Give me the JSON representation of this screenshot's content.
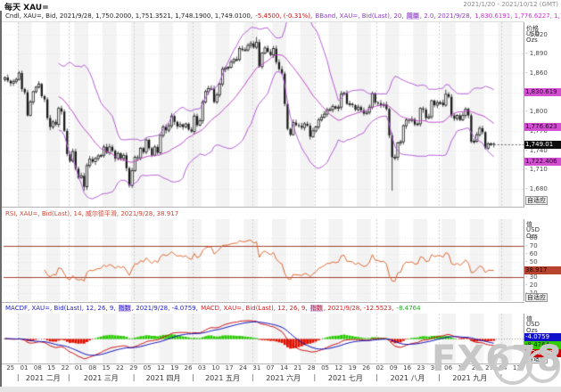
{
  "window": {
    "title": "每天 XAU=",
    "range": "2021/1/20 - 2021/10/12 (GMT)"
  },
  "watermark": "FX678",
  "legends": {
    "main": [
      {
        "text": "Cndl, XAU=, Bid, 2021/9/28, 1,750.2000, 1,751.3521, 1,748.1900, 1,749.0100, ",
        "color": "#222222"
      },
      {
        "text": "-5.4500, (-0.31%), ",
        "color": "#cc1111"
      },
      {
        "text": "BBand, XAU=, Bid(Last), 20, ",
        "color": "#8a3fc0"
      },
      {
        "text": "简单",
        "color": "#8a3fc0",
        "highlight": true
      },
      {
        "text": ", 2.0, 2021/9/28, ",
        "color": "#8a3fc0"
      },
      {
        "text": "1,830.6191, 1,776.6227, 1,722.4063",
        "color": "#cc33cc"
      }
    ],
    "rsi": [
      {
        "text": "RSI, XAU=, Bid(Last), 14, 威尔德平滑, 2021/9/28, 38.917",
        "color": "#cc4433"
      }
    ],
    "macd": [
      {
        "text": "MACDF, XAU=, Bid(Last), 12, 26, 9, ",
        "color": "#2222cc"
      },
      {
        "text": "指数",
        "color": "#2222cc",
        "highlight": true
      },
      {
        "text": ", 2021/9/28, -4.0759, ",
        "color": "#2222cc"
      },
      {
        "text": "MACD, XAU=, Bid(Last), 12, 26, 9, ",
        "color": "#cc2222"
      },
      {
        "text": "指数",
        "color": "#cc2222",
        "highlight": true
      },
      {
        "text": ", 2021/9/28, -12.5523, ",
        "color": "#cc2222"
      },
      {
        "text": "-8.4764",
        "color": "#22aa22"
      }
    ]
  },
  "axes": {
    "price": {
      "header": [
        "价格",
        "USD",
        "Ozs"
      ],
      "ticks": [
        "1,920",
        "1,890",
        "1,860",
        "1,830",
        "1,800",
        "1,770",
        "1,740",
        "1,710",
        "1,680"
      ],
      "tick_values": [
        1920,
        1890,
        1860,
        1830,
        1800,
        1770,
        1740,
        1710,
        1680
      ],
      "footer": "自适应",
      "badges": [
        {
          "label": "1,830.619",
          "value": 1830.62,
          "bg": "#d24fd2",
          "fg": "#2a002a"
        },
        {
          "label": "1,776.623",
          "value": 1776.62,
          "bg": "#d24fd2",
          "fg": "#2a002a"
        },
        {
          "label": "1,749.01",
          "value": 1749.01,
          "bg": "#0d0d0d",
          "fg": "#ffffff"
        },
        {
          "label": "1,722.406",
          "value": 1722.41,
          "bg": "#d24fd2",
          "fg": "#2a002a"
        }
      ]
    },
    "rsi": {
      "header": [
        "值",
        "USD",
        "Ozs"
      ],
      "ticks": [
        80,
        70,
        60,
        50,
        40,
        30,
        20,
        10
      ],
      "levels": [
        70,
        30
      ],
      "footer": "自适应",
      "badges": [
        {
          "label": "38.917",
          "value": 38.917,
          "bg": "#b8432f",
          "fg": "#1a0000"
        }
      ]
    },
    "macd": {
      "header": [
        "值",
        "USD",
        "Ozs"
      ],
      "footer": "自适应",
      "badges": [
        {
          "label": "-4.0759",
          "bg": "#1111cc",
          "fg": "#ffffff"
        },
        {
          "label": "-8.4764",
          "bg": "#33cc00",
          "fg": "#0b2600"
        },
        {
          "label": "-12.5523",
          "bg": "#cc0000",
          "fg": "#ffffff"
        }
      ]
    }
  },
  "time_axis": {
    "day_ticks": [
      "25",
      "01",
      "08",
      "15",
      "22",
      "01",
      "08",
      "15",
      "22",
      "29",
      "05",
      "12",
      "19",
      "26",
      "03",
      "10",
      "17",
      "24",
      "31",
      "07",
      "14",
      "21",
      "28",
      "05",
      "12",
      "19",
      "26",
      "02",
      "09",
      "16",
      "23",
      "30",
      "06",
      "13",
      "20",
      "27",
      "04",
      "11"
    ],
    "months": [
      "2021 二月",
      "2021 三月",
      "2021 四月",
      "2021 五月",
      "2021 六月",
      "2021 七月",
      "2021 八月",
      "2021 九月"
    ]
  },
  "chart_data": {
    "type": "candlestick",
    "symbol": "XAU=",
    "interval": "每天",
    "visible_range": "2021/1/20 - 2021/10/12 (GMT)",
    "last": {
      "date": "2021/9/28",
      "open": 1750.2,
      "high": 1751.3521,
      "low": 1748.19,
      "close": 1749.01,
      "change": -5.45,
      "change_pct": "-0.31%"
    },
    "studies": [
      {
        "name": "BBand",
        "params": "20, 简单, 2.0",
        "upper": 1830.6191,
        "middle": 1776.6227,
        "lower": 1722.4063
      },
      {
        "name": "RSI",
        "params": "14, 威尔德平滑",
        "value": 38.917,
        "levels": [
          70,
          30
        ]
      },
      {
        "name": "MACD",
        "params": "12, 26, 9, 指数",
        "macdf": -4.0759,
        "macd": -12.5523,
        "hist": -8.4764
      }
    ],
    "ylim": [
      1652,
      1939
    ],
    "rsi_ylim": [
      0,
      100
    ],
    "macd_ylim": [
      -45,
      45
    ],
    "slots": 184,
    "month_slots": [
      5,
      23,
      46,
      67,
      88,
      110,
      132,
      154,
      176
    ],
    "closes": [
      1853,
      1848,
      1844,
      1847,
      1850,
      1860,
      1835,
      1830,
      1794,
      1815,
      1831,
      1838,
      1843,
      1824,
      1819,
      1790,
      1776,
      1784,
      1780,
      1805,
      1800,
      1770,
      1734,
      1723,
      1738,
      1711,
      1697,
      1700,
      1683,
      1716,
      1726,
      1722,
      1727,
      1731,
      1732,
      1745,
      1736,
      1745,
      1739,
      1727,
      1735,
      1727,
      1732,
      1712,
      1685,
      1708,
      1729,
      1728,
      1743,
      1737,
      1756,
      1743,
      1732,
      1745,
      1736,
      1763,
      1776,
      1771,
      1778,
      1793,
      1784,
      1777,
      1780,
      1776,
      1781,
      1772,
      1769,
      1793,
      1779,
      1786,
      1815,
      1831,
      1836,
      1836,
      1815,
      1826,
      1843,
      1866,
      1868,
      1869,
      1877,
      1881,
      1881,
      1898,
      1896,
      1896,
      1903,
      1906,
      1900,
      1908,
      1870,
      1891,
      1899,
      1893,
      1888,
      1898,
      1877,
      1866,
      1859,
      1812,
      1773,
      1764,
      1783,
      1779,
      1778,
      1775,
      1781,
      1778,
      1761,
      1770,
      1776,
      1787,
      1791,
      1796,
      1803,
      1803,
      1808,
      1805,
      1807,
      1827,
      1829,
      1812,
      1812,
      1810,
      1803,
      1807,
      1802,
      1797,
      1799,
      1807,
      1828,
      1814,
      1813,
      1810,
      1811,
      1804,
      1763,
      1729,
      1729,
      1751,
      1753,
      1778,
      1787,
      1786,
      1788,
      1780,
      1781,
      1805,
      1803,
      1790,
      1792,
      1817,
      1810,
      1814,
      1814,
      1810,
      1827,
      1823,
      1794,
      1789,
      1794,
      1787,
      1794,
      1804,
      1794,
      1753,
      1754,
      1764,
      1774,
      1768,
      1743,
      1750,
      1750,
      1749.01
    ],
    "colors": {
      "candle": "#1a1a1a",
      "bband": "#b45fd6",
      "rsi": "#e06a35",
      "rsi_levels": "#a04030",
      "macd_line": "#cc1111",
      "signal_line": "#1111bb",
      "hist_up": "#28cc00",
      "hist_down": "#e01100",
      "stripe": "#f3f3f3",
      "grid": "#e3e3e3",
      "month_line": "#cfcfcf"
    }
  }
}
